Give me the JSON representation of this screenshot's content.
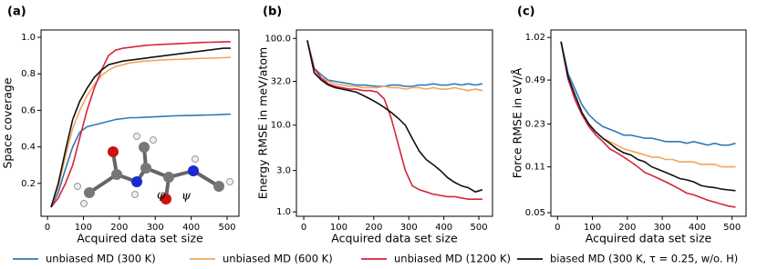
{
  "chart_data": [
    {
      "type": "line",
      "title": "(a)",
      "xlabel": "Acquired data set size",
      "ylabel": "Space coverage",
      "x": [
        10,
        30,
        50,
        70,
        90,
        110,
        130,
        150,
        170,
        190,
        210,
        230,
        250,
        270,
        290,
        310,
        330,
        350,
        370,
        390,
        410,
        430,
        450,
        470,
        490,
        510
      ],
      "xlim": [
        -18,
        533
      ],
      "xticks": [
        0,
        100,
        200,
        300,
        400,
        500
      ],
      "ylim": [
        0.02,
        1.04
      ],
      "yticks": [
        0.2,
        0.4,
        0.6,
        0.8,
        {
          "value": 1.0,
          "label": "1.0"
        }
      ],
      "annotations": [
        "φ",
        "ψ"
      ],
      "series": [
        {
          "name": "unbiased MD (300 K)",
          "color": "#2f7ab8",
          "values": [
            0.07,
            0.15,
            0.28,
            0.4,
            0.48,
            0.51,
            0.52,
            0.53,
            0.54,
            0.55,
            0.555,
            0.56,
            0.56,
            0.562,
            0.564,
            0.566,
            0.568,
            0.57,
            0.571,
            0.572,
            0.573,
            0.574,
            0.575,
            0.576,
            0.578,
            0.58
          ]
        },
        {
          "name": "unbiased MD (600 K)",
          "color": "#f4a55a",
          "values": [
            0.07,
            0.18,
            0.35,
            0.5,
            0.6,
            0.68,
            0.74,
            0.79,
            0.82,
            0.84,
            0.85,
            0.86,
            0.865,
            0.87,
            0.872,
            0.875,
            0.877,
            0.879,
            0.88,
            0.882,
            0.884,
            0.885,
            0.886,
            0.887,
            0.888,
            0.89
          ]
        },
        {
          "name": "unbiased MD (1200 K)",
          "color": "#d3263a",
          "values": [
            0.07,
            0.12,
            0.2,
            0.3,
            0.45,
            0.6,
            0.72,
            0.82,
            0.9,
            0.93,
            0.94,
            0.945,
            0.95,
            0.955,
            0.958,
            0.96,
            0.962,
            0.964,
            0.966,
            0.968,
            0.97,
            0.972,
            0.973,
            0.974,
            0.975,
            0.976
          ]
        },
        {
          "name": "biased MD (300 K, τ = 0.25, w/o. H)",
          "color": "#111111",
          "values": [
            0.07,
            0.2,
            0.38,
            0.55,
            0.65,
            0.72,
            0.78,
            0.82,
            0.85,
            0.86,
            0.87,
            0.875,
            0.88,
            0.885,
            0.89,
            0.895,
            0.9,
            0.905,
            0.91,
            0.915,
            0.92,
            0.925,
            0.93,
            0.935,
            0.94,
            0.94
          ]
        }
      ]
    },
    {
      "type": "line",
      "title": "(b)",
      "xlabel": "Acquired data set size",
      "ylabel": "Energy RMSE in meV/atom",
      "x": [
        10,
        30,
        50,
        70,
        90,
        110,
        130,
        150,
        170,
        190,
        210,
        230,
        250,
        270,
        290,
        310,
        330,
        350,
        370,
        390,
        410,
        430,
        450,
        470,
        490,
        510
      ],
      "xlim": [
        -21,
        539
      ],
      "xticks": [
        0,
        100,
        200,
        300,
        400,
        500
      ],
      "ylog": true,
      "ylim": [
        0.89,
        125
      ],
      "yticks": [
        {
          "value": 1.0,
          "label": "1.0"
        },
        {
          "value": 3.0,
          "label": "3.0"
        },
        {
          "value": 10.0,
          "label": "10.0"
        },
        {
          "value": 32.0,
          "label": "32.0"
        },
        {
          "value": 100.0,
          "label": "100.0"
        }
      ],
      "series": [
        {
          "color": "#2f7ab8",
          "values": [
            95,
            45,
            38,
            33,
            32,
            31,
            30,
            29,
            29,
            28.5,
            28,
            28,
            29,
            29,
            28,
            28,
            29,
            29,
            30,
            29,
            29,
            30,
            29,
            30,
            29,
            30
          ]
        },
        {
          "color": "#f4a55a",
          "values": [
            95,
            40,
            35,
            32,
            30,
            29,
            28,
            28,
            27,
            27,
            27,
            28,
            27,
            27,
            26,
            27,
            27,
            26,
            27,
            26,
            26,
            27,
            26,
            25,
            26,
            25
          ]
        },
        {
          "color": "#d3263a",
          "values": [
            95,
            45,
            35,
            30,
            28,
            27,
            26,
            26,
            25,
            25,
            24,
            20,
            12,
            6,
            3,
            2,
            1.8,
            1.7,
            1.6,
            1.55,
            1.5,
            1.5,
            1.45,
            1.4,
            1.4,
            1.4
          ]
        },
        {
          "color": "#111111",
          "values": [
            95,
            40,
            33,
            29,
            27,
            26,
            25,
            24,
            22,
            20,
            18,
            16,
            14,
            12,
            10,
            7,
            5,
            4,
            3.5,
            3,
            2.5,
            2.2,
            2,
            1.9,
            1.7,
            1.8
          ]
        }
      ]
    },
    {
      "type": "line",
      "title": "(c)",
      "xlabel": "Acquired data set size",
      "ylabel": "Force RMSE in eV/Å",
      "x": [
        10,
        30,
        50,
        70,
        90,
        110,
        130,
        150,
        170,
        190,
        210,
        230,
        250,
        270,
        290,
        310,
        330,
        350,
        370,
        390,
        410,
        430,
        450,
        470,
        490,
        510
      ],
      "xlim": [
        -19,
        540
      ],
      "xticks": [
        0,
        100,
        200,
        300,
        400,
        500
      ],
      "ylog": true,
      "ylim": [
        0.047,
        1.16
      ],
      "yticks": [
        {
          "value": 0.05,
          "label": "0.05"
        },
        {
          "value": 0.11,
          "label": "0.11"
        },
        {
          "value": 0.23,
          "label": "0.23"
        },
        {
          "value": 0.49,
          "label": "0.49"
        },
        {
          "value": 1.02,
          "label": "1.02"
        }
      ],
      "series": [
        {
          "color": "#2f7ab8",
          "values": [
            0.95,
            0.55,
            0.42,
            0.32,
            0.27,
            0.24,
            0.22,
            0.21,
            0.2,
            0.19,
            0.19,
            0.185,
            0.18,
            0.18,
            0.175,
            0.17,
            0.17,
            0.17,
            0.165,
            0.17,
            0.165,
            0.16,
            0.165,
            0.16,
            0.16,
            0.165
          ]
        },
        {
          "color": "#f4a55a",
          "values": [
            0.95,
            0.5,
            0.38,
            0.28,
            0.22,
            0.2,
            0.18,
            0.17,
            0.16,
            0.15,
            0.145,
            0.14,
            0.135,
            0.13,
            0.13,
            0.125,
            0.125,
            0.12,
            0.12,
            0.12,
            0.115,
            0.115,
            0.115,
            0.11,
            0.11,
            0.11
          ]
        },
        {
          "color": "#d3263a",
          "values": [
            0.95,
            0.5,
            0.35,
            0.27,
            0.22,
            0.19,
            0.17,
            0.15,
            0.14,
            0.13,
            0.12,
            0.11,
            0.1,
            0.095,
            0.09,
            0.085,
            0.08,
            0.075,
            0.07,
            0.068,
            0.065,
            0.062,
            0.06,
            0.058,
            0.056,
            0.055
          ]
        },
        {
          "color": "#111111",
          "values": [
            0.95,
            0.52,
            0.38,
            0.28,
            0.23,
            0.2,
            0.18,
            0.165,
            0.15,
            0.14,
            0.135,
            0.125,
            0.12,
            0.11,
            0.105,
            0.1,
            0.095,
            0.09,
            0.088,
            0.085,
            0.08,
            0.078,
            0.077,
            0.075,
            0.074,
            0.073
          ]
        }
      ]
    }
  ]
}
